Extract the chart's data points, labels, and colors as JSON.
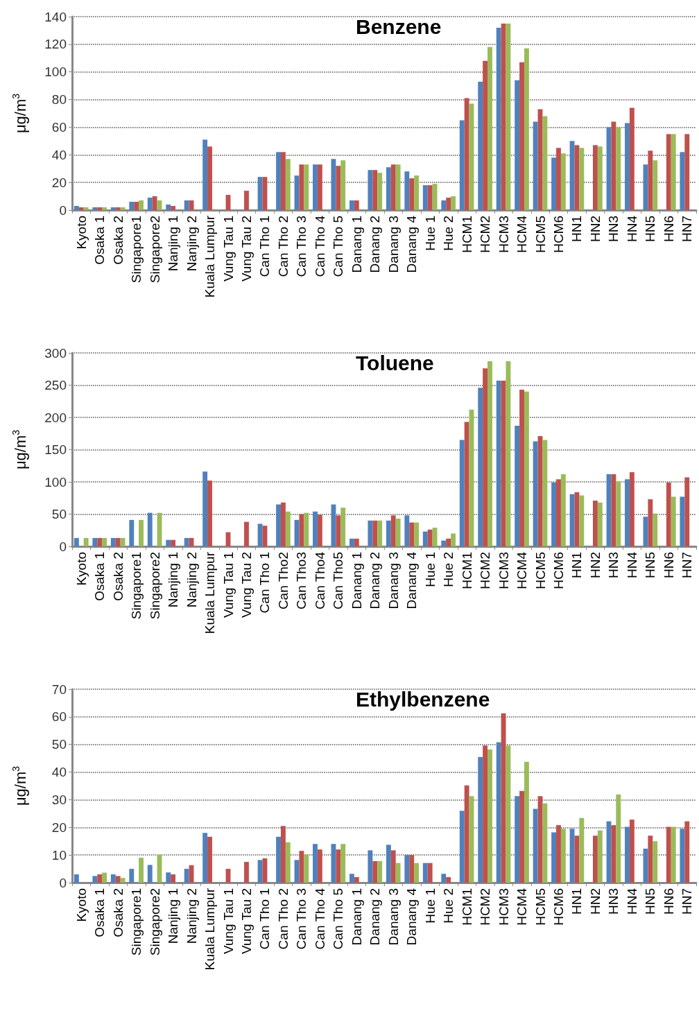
{
  "chart_data": [
    {
      "type": "bar",
      "title": "Benzene",
      "ylabel": "μg/m$^{3}$",
      "ylim": [
        0,
        140
      ],
      "yticks": [
        0,
        20,
        40,
        60,
        80,
        100,
        120,
        140
      ],
      "grid": "y",
      "categories": [
        "Kyoto",
        "Osaka 1",
        "Osaka 2",
        "Singapore1",
        "Singapore2",
        "Nanjing 1",
        "Nanjing 2",
        "Kuala Lumpur",
        "Vung Tau 1",
        "Vung Tau 2",
        "Can Tho 1",
        "Can Tho 2",
        "Can Tho 3",
        "Can Tho 4",
        "Can Tho 5",
        "Danang 1",
        "Danang 2",
        "Danang 3",
        "Danang 4",
        "Hue 1",
        "Hue 2",
        "HCM1",
        "HCM2",
        "HCM3",
        "HCM4",
        "HCM5",
        "HCM6",
        "HN1",
        "HN2",
        "HN3",
        "HN4",
        "HN5",
        "HN6",
        "HN7"
      ],
      "series": [
        {
          "color": "#4f81bd",
          "values": [
            3,
            2,
            2,
            6,
            9,
            4,
            7,
            51,
            null,
            null,
            24,
            42,
            25,
            33,
            37,
            7,
            29,
            31,
            28,
            18,
            7,
            65,
            93,
            132,
            94,
            64,
            38,
            50,
            null,
            60,
            63,
            33,
            null,
            42
          ]
        },
        {
          "color": "#c0504d",
          "values": [
            2,
            2,
            2,
            6,
            10,
            3,
            7,
            46,
            11,
            14,
            24,
            42,
            33,
            33,
            32,
            7,
            29,
            33,
            23,
            18,
            9,
            81,
            108,
            135,
            107,
            73,
            45,
            47,
            47,
            64,
            74,
            43,
            55,
            55
          ]
        },
        {
          "color": "#9bbb59",
          "values": [
            2,
            2,
            2,
            7,
            7,
            null,
            null,
            null,
            null,
            null,
            null,
            37,
            33,
            null,
            36,
            null,
            27,
            33,
            25,
            19,
            10,
            77,
            118,
            135,
            117,
            68,
            41,
            45,
            46,
            60,
            null,
            36,
            55,
            null
          ]
        }
      ]
    },
    {
      "type": "bar",
      "title": "Toluene",
      "ylabel": "μg/m$^{3}$",
      "ylim": [
        0,
        300
      ],
      "yticks": [
        0,
        50,
        100,
        150,
        200,
        250,
        300
      ],
      "grid": "y",
      "categories": [
        "Kyoto",
        "Osaka 1",
        "Osaka 2",
        "Singapore1",
        "Singapore2",
        "Nanjing 1",
        "Nanjing 2",
        "Kuala Lumpur",
        "Vung Tau 1",
        "Vung Tau 2",
        "Can Tho 1",
        "Can Tho2",
        "Can Tho3",
        "Can Tho4",
        "Can Tho5",
        "Danang 1",
        "Danang 2",
        "Danang 3",
        "Danang 4",
        "Hue 1",
        "Hue 2",
        "HCM1",
        "HCM2",
        "HCM3",
        "HCM4",
        "HCM5",
        "HCM6",
        "HN1",
        "HN2",
        "HN3",
        "HN4",
        "HN5",
        "HN6",
        "HN7"
      ],
      "series": [
        {
          "color": "#4f81bd",
          "values": [
            13,
            13,
            13,
            41,
            52,
            10,
            13,
            116,
            null,
            null,
            35,
            65,
            41,
            54,
            65,
            12,
            40,
            40,
            48,
            23,
            9,
            165,
            246,
            257,
            187,
            163,
            99,
            81,
            null,
            112,
            104,
            46,
            null,
            77
          ]
        },
        {
          "color": "#c0504d",
          "values": [
            null,
            13,
            13,
            null,
            null,
            10,
            13,
            102,
            22,
            38,
            32,
            68,
            50,
            49,
            48,
            12,
            40,
            48,
            37,
            26,
            12,
            193,
            276,
            257,
            243,
            171,
            104,
            84,
            71,
            112,
            115,
            73,
            99,
            107
          ]
        },
        {
          "color": "#9bbb59",
          "values": [
            13,
            13,
            13,
            41,
            52,
            null,
            null,
            null,
            null,
            null,
            null,
            54,
            52,
            null,
            60,
            null,
            40,
            43,
            37,
            29,
            20,
            212,
            287,
            287,
            240,
            165,
            112,
            79,
            68,
            101,
            null,
            51,
            77,
            null
          ]
        }
      ]
    },
    {
      "type": "bar",
      "title": "Ethylbenzene",
      "ylabel": "μg/m$^{3}$",
      "ylim": [
        0,
        70
      ],
      "yticks": [
        0,
        10,
        20,
        30,
        40,
        50,
        60,
        70
      ],
      "grid": "y",
      "categories": [
        "Kyoto",
        "Osaka 1",
        "Osaka 2",
        "Singapore1",
        "Singapore2",
        "Nanjing 1",
        "Nanjing 2",
        "Kuala Lumpur",
        "Vung Tau 1",
        "Vung Tau 2",
        "Can Tho 1",
        "Can Tho 2",
        "Can Tho 3",
        "Can Tho 4",
        "Can Tho 5",
        "Danang 1",
        "Danang 2",
        "Danang 3",
        "Danang 4",
        "Hue 1",
        "Hue 2",
        "HCM1",
        "HCM2",
        "HCM3",
        "HCM4",
        "HCM5",
        "HCM6",
        "HN1",
        "HN2",
        "HN3",
        "HN4",
        "HN5",
        "HN6",
        "HN7"
      ],
      "series": [
        {
          "color": "#4f81bd",
          "values": [
            3,
            2.4,
            3,
            5,
            6.4,
            3.7,
            5,
            18,
            null,
            null,
            8.2,
            16.6,
            8.2,
            14,
            14,
            3.2,
            11.7,
            13.7,
            10,
            7.1,
            3.2,
            26,
            45.5,
            50.8,
            31.3,
            26.7,
            18.2,
            19.5,
            null,
            22.2,
            20.2,
            12.3,
            null,
            19.5
          ]
        },
        {
          "color": "#c0504d",
          "values": [
            null,
            3,
            2.4,
            null,
            null,
            3,
            6.3,
            16.6,
            5,
            7.5,
            8.8,
            20.5,
            11.5,
            12,
            12,
            2,
            7.8,
            11.7,
            10,
            7.1,
            2,
            35.2,
            49.6,
            61.3,
            33.2,
            31.3,
            20.8,
            17,
            17,
            20.8,
            22.8,
            17,
            20.2,
            22.2
          ]
        },
        {
          "color": "#9bbb59",
          "values": [
            null,
            3.6,
            1.7,
            9,
            10,
            null,
            null,
            null,
            null,
            null,
            null,
            14.6,
            10.2,
            null,
            14,
            null,
            7.8,
            7.1,
            7.1,
            null,
            null,
            31.3,
            48.2,
            49.6,
            43.7,
            28.7,
            19.5,
            23.4,
            18.9,
            31.9,
            null,
            15,
            20.2,
            null
          ]
        }
      ]
    }
  ]
}
